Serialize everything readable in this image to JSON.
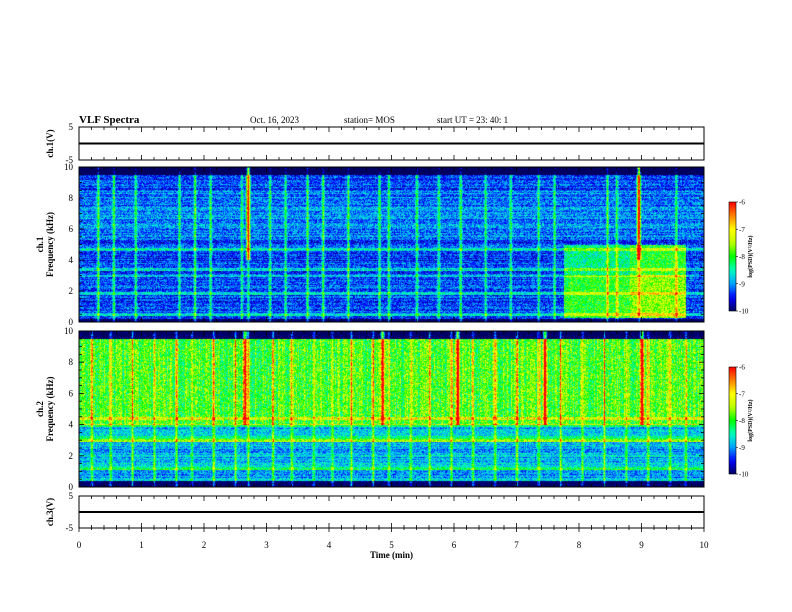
{
  "header": {
    "title": "VLF Spectra",
    "date": "Oct. 16, 2023",
    "station": "station= MOS",
    "start": "start  UT  =   23: 40: 1"
  },
  "colors": {
    "background": "#ffffff",
    "axes": "#000000",
    "colormap": [
      "#000060",
      "#0000ff",
      "#00a0ff",
      "#00ffc0",
      "#00ff00",
      "#c0ff00",
      "#ffff00",
      "#ff8000",
      "#ff0000",
      "#ffffff"
    ]
  },
  "chart_data": [
    {
      "id": "ch1-voltage",
      "type": "line",
      "ylabel": "ch.1(V)",
      "ylim": [
        -5,
        5
      ],
      "yticks": [
        "5",
        "-5"
      ],
      "xlim": [
        0,
        10
      ],
      "series": [
        {
          "x": [
            0,
            10
          ],
          "y": [
            0,
            0
          ]
        }
      ]
    },
    {
      "id": "ch1-spectrogram",
      "type": "heatmap",
      "ylabel_lines": [
        "ch.1",
        "Frequency (kHz)"
      ],
      "ylim": [
        0,
        10
      ],
      "yticks": [
        "0",
        "2",
        "4",
        "6",
        "8",
        "10"
      ],
      "xlim": [
        0,
        10
      ],
      "colorbar": {
        "title": "log(PSD)(V²/Hz)",
        "range": [
          -10,
          -6
        ],
        "ticks": [
          "-6",
          "-7",
          "-8",
          "-9",
          "-10"
        ]
      },
      "background_level": -9.3,
      "signal_band_khz": [
        0.2,
        9.5
      ],
      "noise_patch": {
        "time_min": [
          7.75,
          9.7
        ],
        "freq_khz": [
          0.3,
          5.0
        ],
        "level": -8.0
      },
      "tone_khz": [
        0.5,
        1.9,
        3.0,
        3.4,
        4.7
      ],
      "sferic_times_min": [
        0.3,
        0.55,
        0.9,
        1.6,
        1.85,
        2.1,
        2.6,
        2.7,
        3.05,
        3.3,
        3.65,
        3.9,
        4.3,
        4.8,
        4.95,
        5.4,
        5.75,
        6.1,
        6.5,
        6.9,
        7.35,
        7.6,
        8.45,
        8.6,
        8.95,
        9.55
      ],
      "strong_sferic_times_min": [
        2.7,
        8.95
      ]
    },
    {
      "id": "ch2-spectrogram",
      "type": "heatmap",
      "ylabel_lines": [
        "ch.2",
        "Frequency (kHz)"
      ],
      "ylim": [
        0,
        10
      ],
      "yticks": [
        "0",
        "2",
        "4",
        "6",
        "8",
        "10"
      ],
      "xlim": [
        0,
        10
      ],
      "colorbar": {
        "title": "log(PSD)(V²/Hz)",
        "range": [
          -10,
          -6
        ],
        "ticks": [
          "-6",
          "-7",
          "-8",
          "-9",
          "-10"
        ]
      },
      "background_level": -8.9,
      "hiss_band_khz": [
        4.0,
        9.5
      ],
      "hiss_level": -7.9,
      "tone_khz": [
        3.0,
        3.2,
        4.0,
        4.4,
        1.2
      ],
      "sferic_times_min": [
        0.2,
        0.5,
        0.85,
        1.2,
        1.55,
        1.8,
        2.15,
        2.5,
        2.7,
        3.1,
        3.4,
        3.75,
        4.05,
        4.35,
        4.7,
        4.95,
        5.3,
        5.6,
        5.95,
        6.3,
        6.65,
        7.0,
        7.35,
        7.7,
        8.05,
        8.4,
        8.75,
        9.1,
        9.45,
        9.7
      ],
      "strong_sferic_times_min": [
        2.65,
        4.85,
        6.05,
        7.45,
        9.0
      ]
    },
    {
      "id": "ch3-voltage",
      "type": "line",
      "ylabel": "ch.3(V)",
      "ylim": [
        -5,
        5
      ],
      "yticks": [
        "5",
        "-5"
      ],
      "xlim": [
        0,
        10
      ],
      "xlabel": "Time (min)",
      "xticks": [
        "0",
        "1",
        "2",
        "3",
        "4",
        "5",
        "6",
        "7",
        "8",
        "9",
        "10"
      ],
      "series": [
        {
          "x": [
            0,
            10
          ],
          "y": [
            0,
            0
          ]
        }
      ]
    }
  ]
}
